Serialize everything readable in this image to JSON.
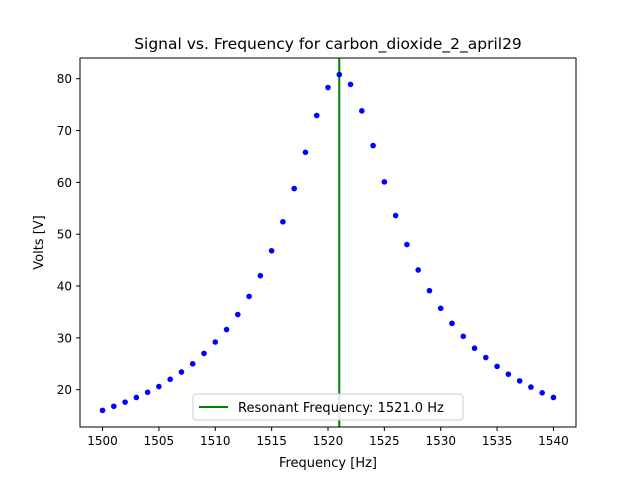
{
  "chart_data": {
    "type": "scatter",
    "title": "Signal vs. Frequency for carbon_dioxide_2_april29",
    "xlabel": "Frequency [Hz]",
    "ylabel": "Volts [V]",
    "xlim": [
      1498.0,
      1542.0
    ],
    "ylim": [
      12.8,
      84.0
    ],
    "xticks": [
      1500,
      1505,
      1510,
      1515,
      1520,
      1525,
      1530,
      1535,
      1540
    ],
    "yticks": [
      20,
      30,
      40,
      50,
      60,
      70,
      80
    ],
    "grid": false,
    "legend_placement": "lower center",
    "series": [
      {
        "marker_color": "#0000ff",
        "x": [
          1500,
          1501,
          1502,
          1503,
          1504,
          1505,
          1506,
          1507,
          1508,
          1509,
          1510,
          1511,
          1512,
          1513,
          1514,
          1515,
          1516,
          1517,
          1518,
          1519,
          1520,
          1521,
          1522,
          1523,
          1524,
          1525,
          1526,
          1527,
          1528,
          1529,
          1530,
          1531,
          1532,
          1533,
          1534,
          1535,
          1536,
          1537,
          1538,
          1539,
          1540
        ],
        "y": [
          16.0,
          16.8,
          17.6,
          18.5,
          19.5,
          20.6,
          22.0,
          23.4,
          25.0,
          27.0,
          29.2,
          31.6,
          34.5,
          38.0,
          42.0,
          46.8,
          52.4,
          58.8,
          65.8,
          72.9,
          78.3,
          80.8,
          78.9,
          73.8,
          67.1,
          60.1,
          53.6,
          48.0,
          43.1,
          39.1,
          35.7,
          32.8,
          30.3,
          28.0,
          26.2,
          24.5,
          23.0,
          21.7,
          20.5,
          19.4,
          18.5
        ]
      }
    ],
    "reference_line": {
      "orientation": "vertical",
      "x": 1521.0,
      "color": "#008000",
      "label": "Resonant Frequency: 1521.0 Hz"
    }
  }
}
